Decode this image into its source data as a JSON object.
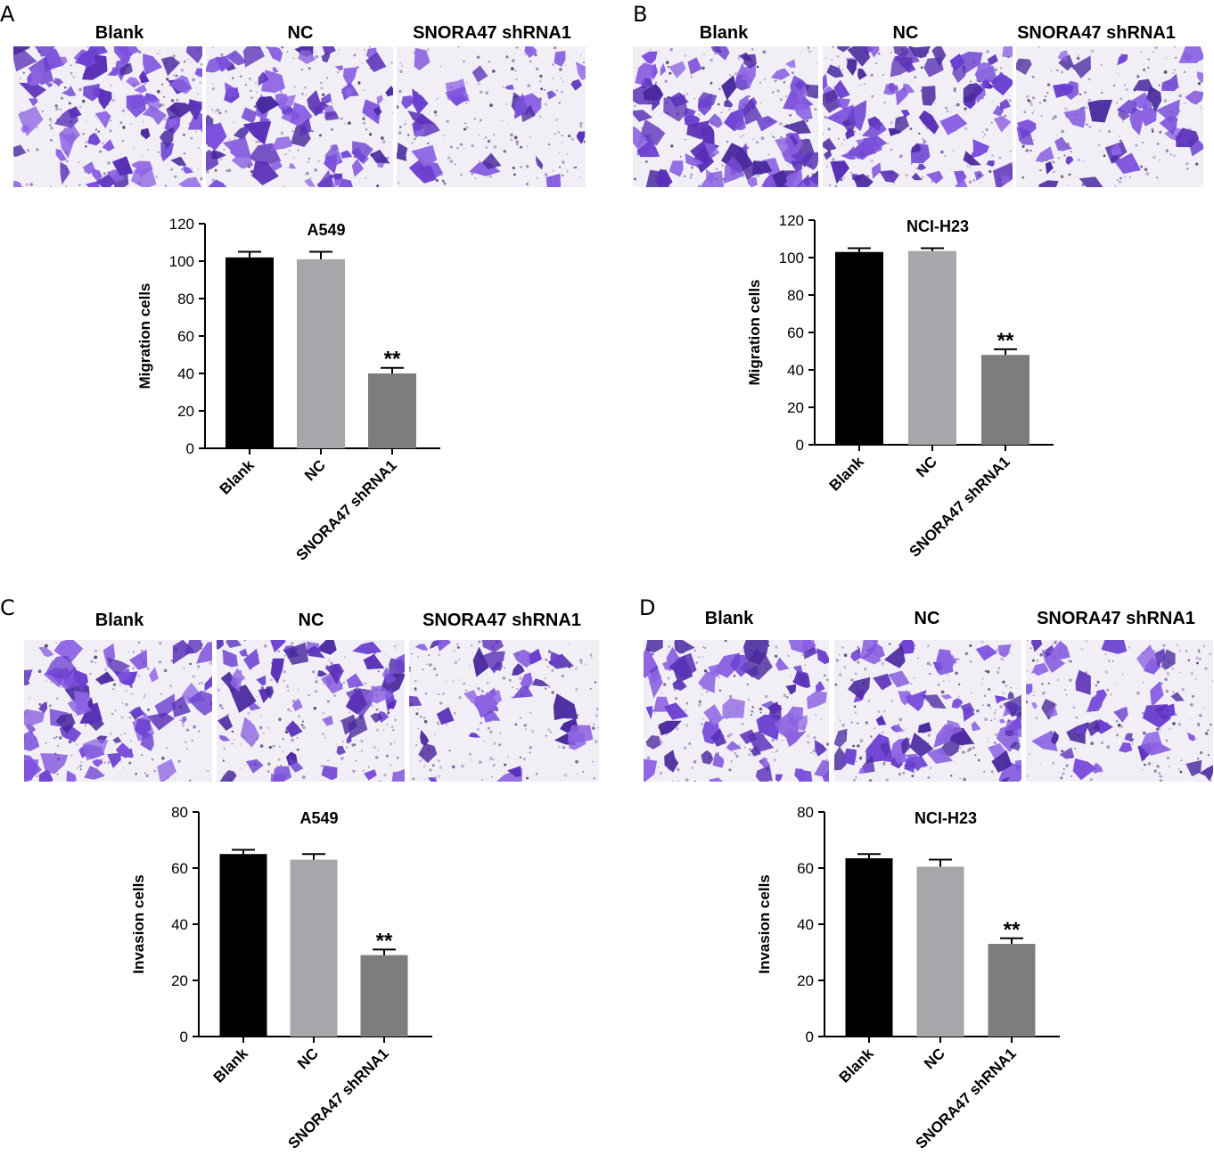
{
  "panels": [
    {
      "letter": "A",
      "column_labels": [
        "Blank",
        "NC",
        "SNORA47 shRNA1"
      ],
      "chart_data": {
        "type": "bar",
        "title": "A549",
        "xlabel": "",
        "ylabel": "Migration cells",
        "categories": [
          "Blank",
          "NC",
          "SNORA47 shRNA1"
        ],
        "values": [
          102,
          101,
          40
        ],
        "errors": [
          3,
          4,
          3
        ],
        "annotations": [
          "",
          "",
          "**"
        ],
        "ylim": [
          0,
          120
        ],
        "yticks": [
          0,
          20,
          40,
          60,
          80,
          100,
          120
        ],
        "colors": [
          "#000000",
          "#a7a7ab",
          "#7d7d7f"
        ],
        "grid": false,
        "legend": "none"
      }
    },
    {
      "letter": "B",
      "column_labels": [
        "Blank",
        "NC",
        "SNORA47 shRNA1"
      ],
      "chart_data": {
        "type": "bar",
        "title": "NCI-H23",
        "xlabel": "",
        "ylabel": "Migration cells",
        "categories": [
          "Blank",
          "NC",
          "SNORA47 shRNA1"
        ],
        "values": [
          103,
          103.5,
          48
        ],
        "errors": [
          2,
          1.5,
          3
        ],
        "annotations": [
          "",
          "",
          "**"
        ],
        "ylim": [
          0,
          120
        ],
        "yticks": [
          0,
          20,
          40,
          60,
          80,
          100,
          120
        ],
        "colors": [
          "#000000",
          "#a7a7ab",
          "#7d7d7f"
        ],
        "grid": false,
        "legend": "none"
      }
    },
    {
      "letter": "C",
      "column_labels": [
        "Blank",
        "NC",
        "SNORA47 shRNA1"
      ],
      "chart_data": {
        "type": "bar",
        "title": "A549",
        "xlabel": "",
        "ylabel": "Invasion cells",
        "categories": [
          "Blank",
          "NC",
          "SNORA47 shRNA1"
        ],
        "values": [
          65,
          63,
          29
        ],
        "errors": [
          1.5,
          2,
          2
        ],
        "annotations": [
          "",
          "",
          "**"
        ],
        "ylim": [
          0,
          80
        ],
        "yticks": [
          0,
          20,
          40,
          60,
          80
        ],
        "colors": [
          "#000000",
          "#a7a7ab",
          "#7d7d7f"
        ],
        "grid": false,
        "legend": "none"
      }
    },
    {
      "letter": "D",
      "column_labels": [
        "Blank",
        "NC",
        "SNORA47 shRNA1"
      ],
      "chart_data": {
        "type": "bar",
        "title": "NCI-H23",
        "xlabel": "",
        "ylabel": "Invasion cells",
        "categories": [
          "Blank",
          "NC",
          "SNORA47 shRNA1"
        ],
        "values": [
          63.5,
          60.5,
          33
        ],
        "errors": [
          1.5,
          2.5,
          2
        ],
        "annotations": [
          "",
          "",
          "**"
        ],
        "ylim": [
          0,
          80
        ],
        "yticks": [
          0,
          20,
          40,
          60,
          80
        ],
        "colors": [
          "#000000",
          "#a7a7ab",
          "#7d7d7f"
        ],
        "grid": false,
        "legend": "none"
      }
    }
  ],
  "micrograph": {
    "stain_colors": [
      "#6a3fd0",
      "#7b4fdc",
      "#5a30b8",
      "#8c63e2",
      "#4a2a9e"
    ],
    "background_color": "#f1eef5"
  }
}
